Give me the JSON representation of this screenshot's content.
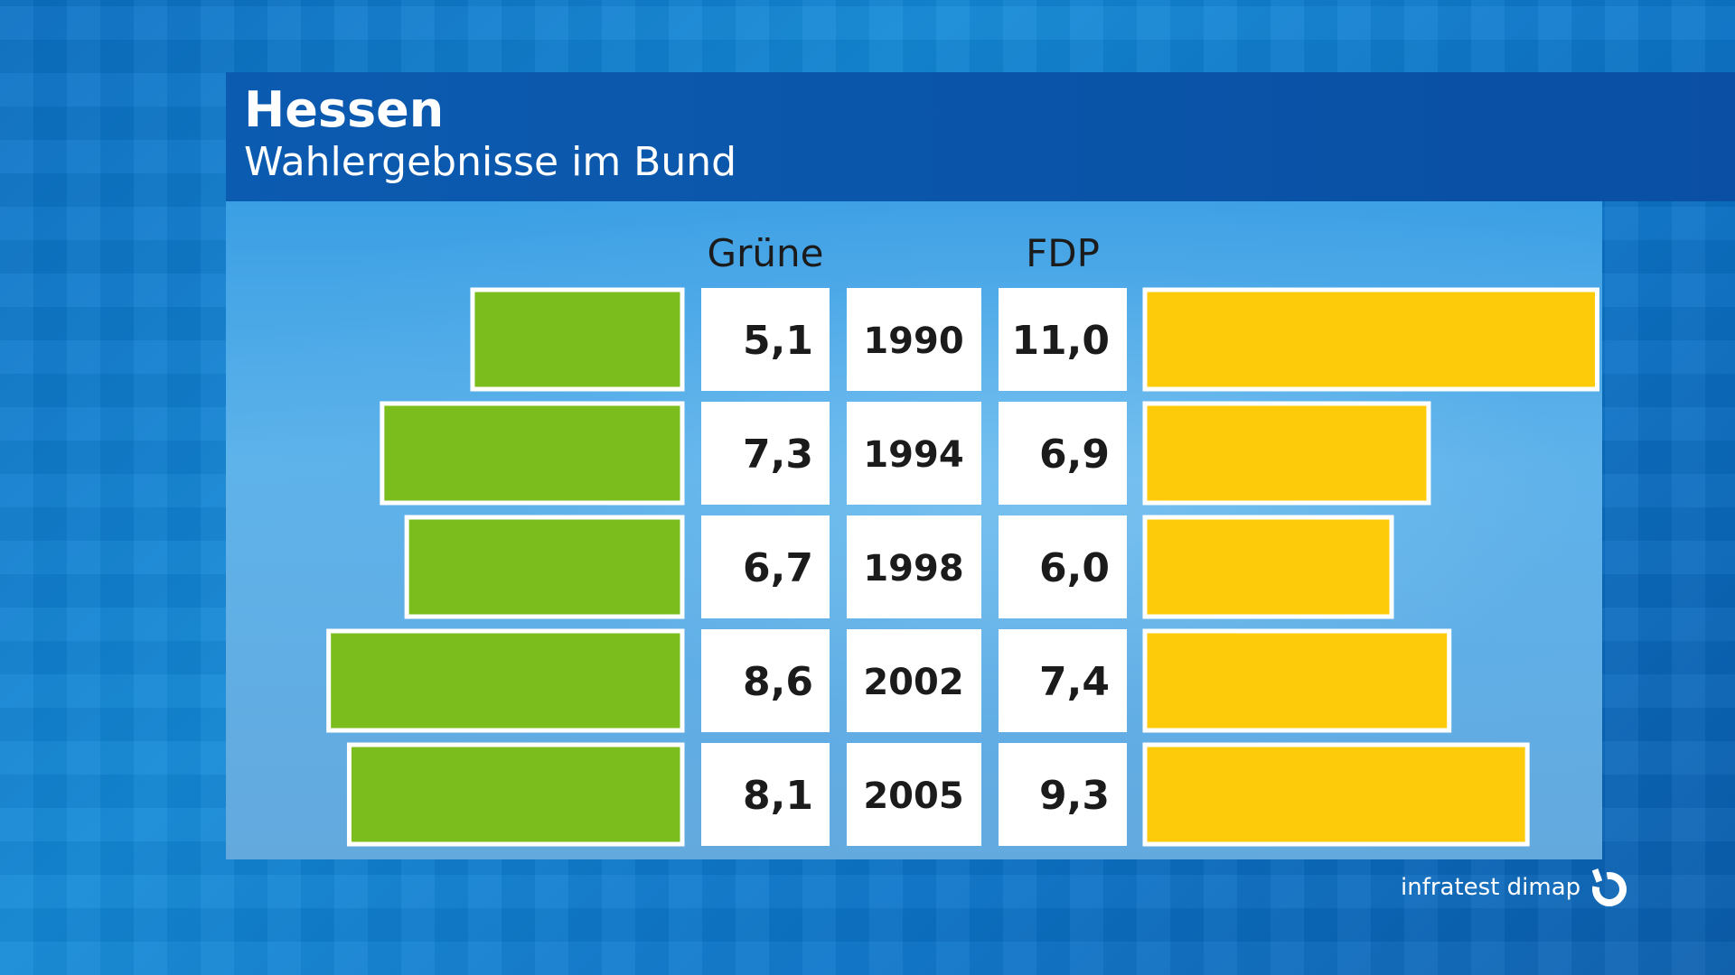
{
  "header": {
    "title": "Hessen",
    "subtitle": "Wahlergebnisse im Bund"
  },
  "brand": {
    "name": "infratest dimap"
  },
  "colors": {
    "gruene": "#7bbd1c",
    "fdp": "#fecb0b"
  },
  "chart_data": {
    "type": "bar",
    "orientation": "horizontal-diverging",
    "categories": [
      "1990",
      "1994",
      "1998",
      "2002",
      "2005"
    ],
    "series": [
      {
        "name": "Grüne",
        "values": [
          5.1,
          7.3,
          6.7,
          8.6,
          8.1
        ],
        "labels": [
          "5,1",
          "7,3",
          "6,7",
          "8,6",
          "8,1"
        ]
      },
      {
        "name": "FDP",
        "values": [
          11.0,
          6.9,
          6.0,
          7.4,
          9.3
        ],
        "labels": [
          "11,0",
          "6,9",
          "6,0",
          "7,4",
          "9,3"
        ]
      }
    ],
    "grid": false,
    "legend": "none"
  }
}
